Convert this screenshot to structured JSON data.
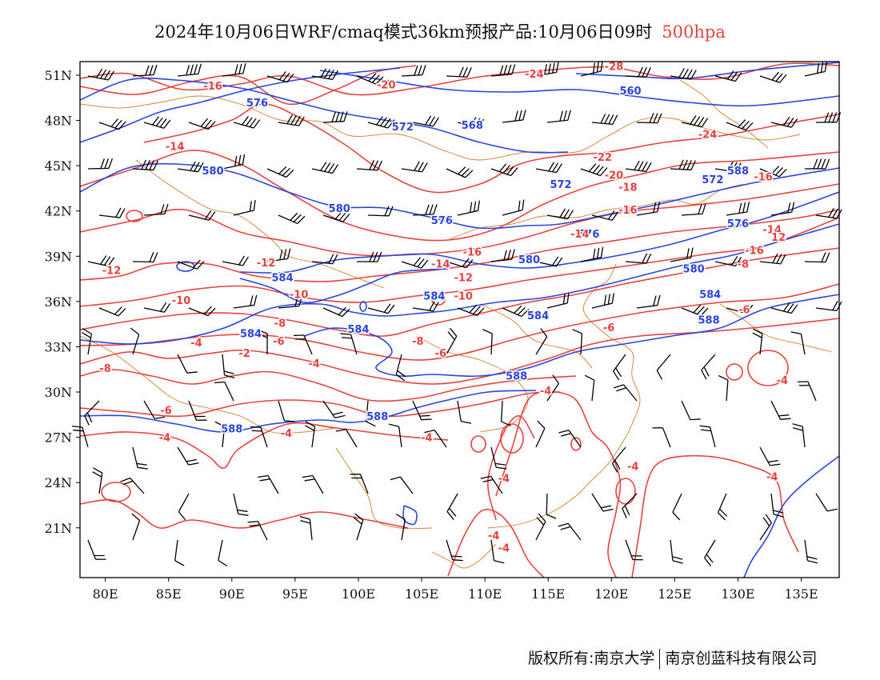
{
  "title": {
    "text": "2024年10月06日WRF/cmaq模式36km预报产品:10月06日09时",
    "level": "500hpa"
  },
  "footer": {
    "copyright": "版权所有:南京大学",
    "company": "南京创蓝科技有限公司"
  },
  "axes": {
    "lat_labels": [
      "51N",
      "48N",
      "45N",
      "42N",
      "39N",
      "36N",
      "33N",
      "30N",
      "27N",
      "24N",
      "21N"
    ],
    "lat_values": [
      51,
      48,
      45,
      42,
      39,
      36,
      33,
      30,
      27,
      24,
      21
    ],
    "lon_labels": [
      "80E",
      "85E",
      "90E",
      "95E",
      "100E",
      "105E",
      "110E",
      "115E",
      "120E",
      "125E",
      "130E",
      "135E"
    ],
    "lon_values": [
      80,
      85,
      90,
      95,
      100,
      105,
      110,
      115,
      120,
      125,
      130,
      135
    ],
    "lon_range": [
      78,
      138
    ],
    "lat_range": [
      17.7,
      51.9
    ]
  },
  "colors": {
    "temperature": "#e8423f",
    "height": "#2a44e0",
    "wind": "#000000",
    "borders": "#d08030"
  },
  "height_labels": [
    {
      "text": "576",
      "lon": 92,
      "lat": 49.2
    },
    {
      "text": "572",
      "lon": 103.5,
      "lat": 47.6
    },
    {
      "text": "568",
      "lon": 109,
      "lat": 47.7
    },
    {
      "text": "560",
      "lon": 121.5,
      "lat": 50
    },
    {
      "text": "580",
      "lon": 88.5,
      "lat": 44.7
    },
    {
      "text": "588",
      "lon": 130,
      "lat": 44.7
    },
    {
      "text": "572",
      "lon": 116,
      "lat": 43.8
    },
    {
      "text": "572",
      "lon": 128,
      "lat": 44.1
    },
    {
      "text": "580",
      "lon": 98.5,
      "lat": 42.2
    },
    {
      "text": "576",
      "lon": 106.6,
      "lat": 41.4
    },
    {
      "text": "576",
      "lon": 130,
      "lat": 41.2
    },
    {
      "text": "576",
      "lon": 118.2,
      "lat": 40.5
    },
    {
      "text": "580",
      "lon": 113.5,
      "lat": 38.8
    },
    {
      "text": "580",
      "lon": 126.5,
      "lat": 38.2
    },
    {
      "text": "584",
      "lon": 94,
      "lat": 37.6
    },
    {
      "text": "584",
      "lon": 106,
      "lat": 36.4
    },
    {
      "text": "584",
      "lon": 127.8,
      "lat": 36.5
    },
    {
      "text": "584",
      "lon": 91.5,
      "lat": 33.9
    },
    {
      "text": "584",
      "lon": 100,
      "lat": 34.2
    },
    {
      "text": "584",
      "lon": 114.2,
      "lat": 35.1
    },
    {
      "text": "588",
      "lon": 127.7,
      "lat": 34.8
    },
    {
      "text": "588",
      "lon": 112.5,
      "lat": 31.1
    },
    {
      "text": "588",
      "lon": 101.5,
      "lat": 28.4
    },
    {
      "text": "588",
      "lon": 90,
      "lat": 27.6
    }
  ],
  "temp_labels": [
    {
      "text": "-16",
      "lon": 88.5,
      "lat": 50.3
    },
    {
      "text": "-20",
      "lon": 102.2,
      "lat": 50.4
    },
    {
      "text": "-24",
      "lon": 113.9,
      "lat": 51.1
    },
    {
      "text": "-28",
      "lon": 120.2,
      "lat": 51.6
    },
    {
      "text": "-24",
      "lon": 127.6,
      "lat": 47.1
    },
    {
      "text": "-14",
      "lon": 85.5,
      "lat": 46.3
    },
    {
      "text": "-22",
      "lon": 119.3,
      "lat": 45.6
    },
    {
      "text": "-20",
      "lon": 120.2,
      "lat": 44.4
    },
    {
      "text": "-18",
      "lon": 121.3,
      "lat": 43.6
    },
    {
      "text": "-16",
      "lon": 132,
      "lat": 44.3
    },
    {
      "text": "-16",
      "lon": 121.3,
      "lat": 42.1
    },
    {
      "text": "-14",
      "lon": 117.5,
      "lat": 40.5
    },
    {
      "text": "-14",
      "lon": 132.7,
      "lat": 40.8
    },
    {
      "text": "12",
      "lon": 133.2,
      "lat": 40.3
    },
    {
      "text": "-16",
      "lon": 109,
      "lat": 39.3
    },
    {
      "text": "-16",
      "lon": 131.3,
      "lat": 39.4
    },
    {
      "text": "-14",
      "lon": 106.5,
      "lat": 38.5
    },
    {
      "text": "-12",
      "lon": 92.7,
      "lat": 38.6
    },
    {
      "text": "-12",
      "lon": 80.5,
      "lat": 38.1
    },
    {
      "text": "-12",
      "lon": 108.3,
      "lat": 37.6
    },
    {
      "text": "-8",
      "lon": 130.4,
      "lat": 38.5
    },
    {
      "text": "-10",
      "lon": 95.3,
      "lat": 36.5
    },
    {
      "text": "-10",
      "lon": 86,
      "lat": 36.1
    },
    {
      "text": "-10",
      "lon": 108.3,
      "lat": 36.4
    },
    {
      "text": "-6",
      "lon": 130.5,
      "lat": 35.5
    },
    {
      "text": "-8",
      "lon": 93.8,
      "lat": 34.6
    },
    {
      "text": "-6",
      "lon": 119.8,
      "lat": 34.3
    },
    {
      "text": "-6",
      "lon": 93.7,
      "lat": 33.4
    },
    {
      "text": "-4",
      "lon": 87.2,
      "lat": 33.3
    },
    {
      "text": "-8",
      "lon": 104.7,
      "lat": 33.4
    },
    {
      "text": "-2",
      "lon": 91,
      "lat": 32.6
    },
    {
      "text": "-6",
      "lon": 106.5,
      "lat": 32.6
    },
    {
      "text": "-4",
      "lon": 96.5,
      "lat": 31.9
    },
    {
      "text": "-8",
      "lon": 80,
      "lat": 31.6
    },
    {
      "text": "-4",
      "lon": 133.5,
      "lat": 30.8
    },
    {
      "text": "-4",
      "lon": 114.8,
      "lat": 30.1
    },
    {
      "text": "-6",
      "lon": 84.8,
      "lat": 28.8
    },
    {
      "text": "-4",
      "lon": 94.3,
      "lat": 27.3
    },
    {
      "text": "-4",
      "lon": 84.7,
      "lat": 27
    },
    {
      "text": "-4",
      "lon": 105.4,
      "lat": 27
    },
    {
      "text": "-4",
      "lon": 121.7,
      "lat": 25.1
    },
    {
      "text": "-4",
      "lon": 132.7,
      "lat": 24.4
    },
    {
      "text": "-4",
      "lon": 111.5,
      "lat": 24.3
    },
    {
      "text": "-4",
      "lon": 110.7,
      "lat": 20.5
    },
    {
      "text": "-4",
      "lon": 111.5,
      "lat": 19.7
    }
  ]
}
